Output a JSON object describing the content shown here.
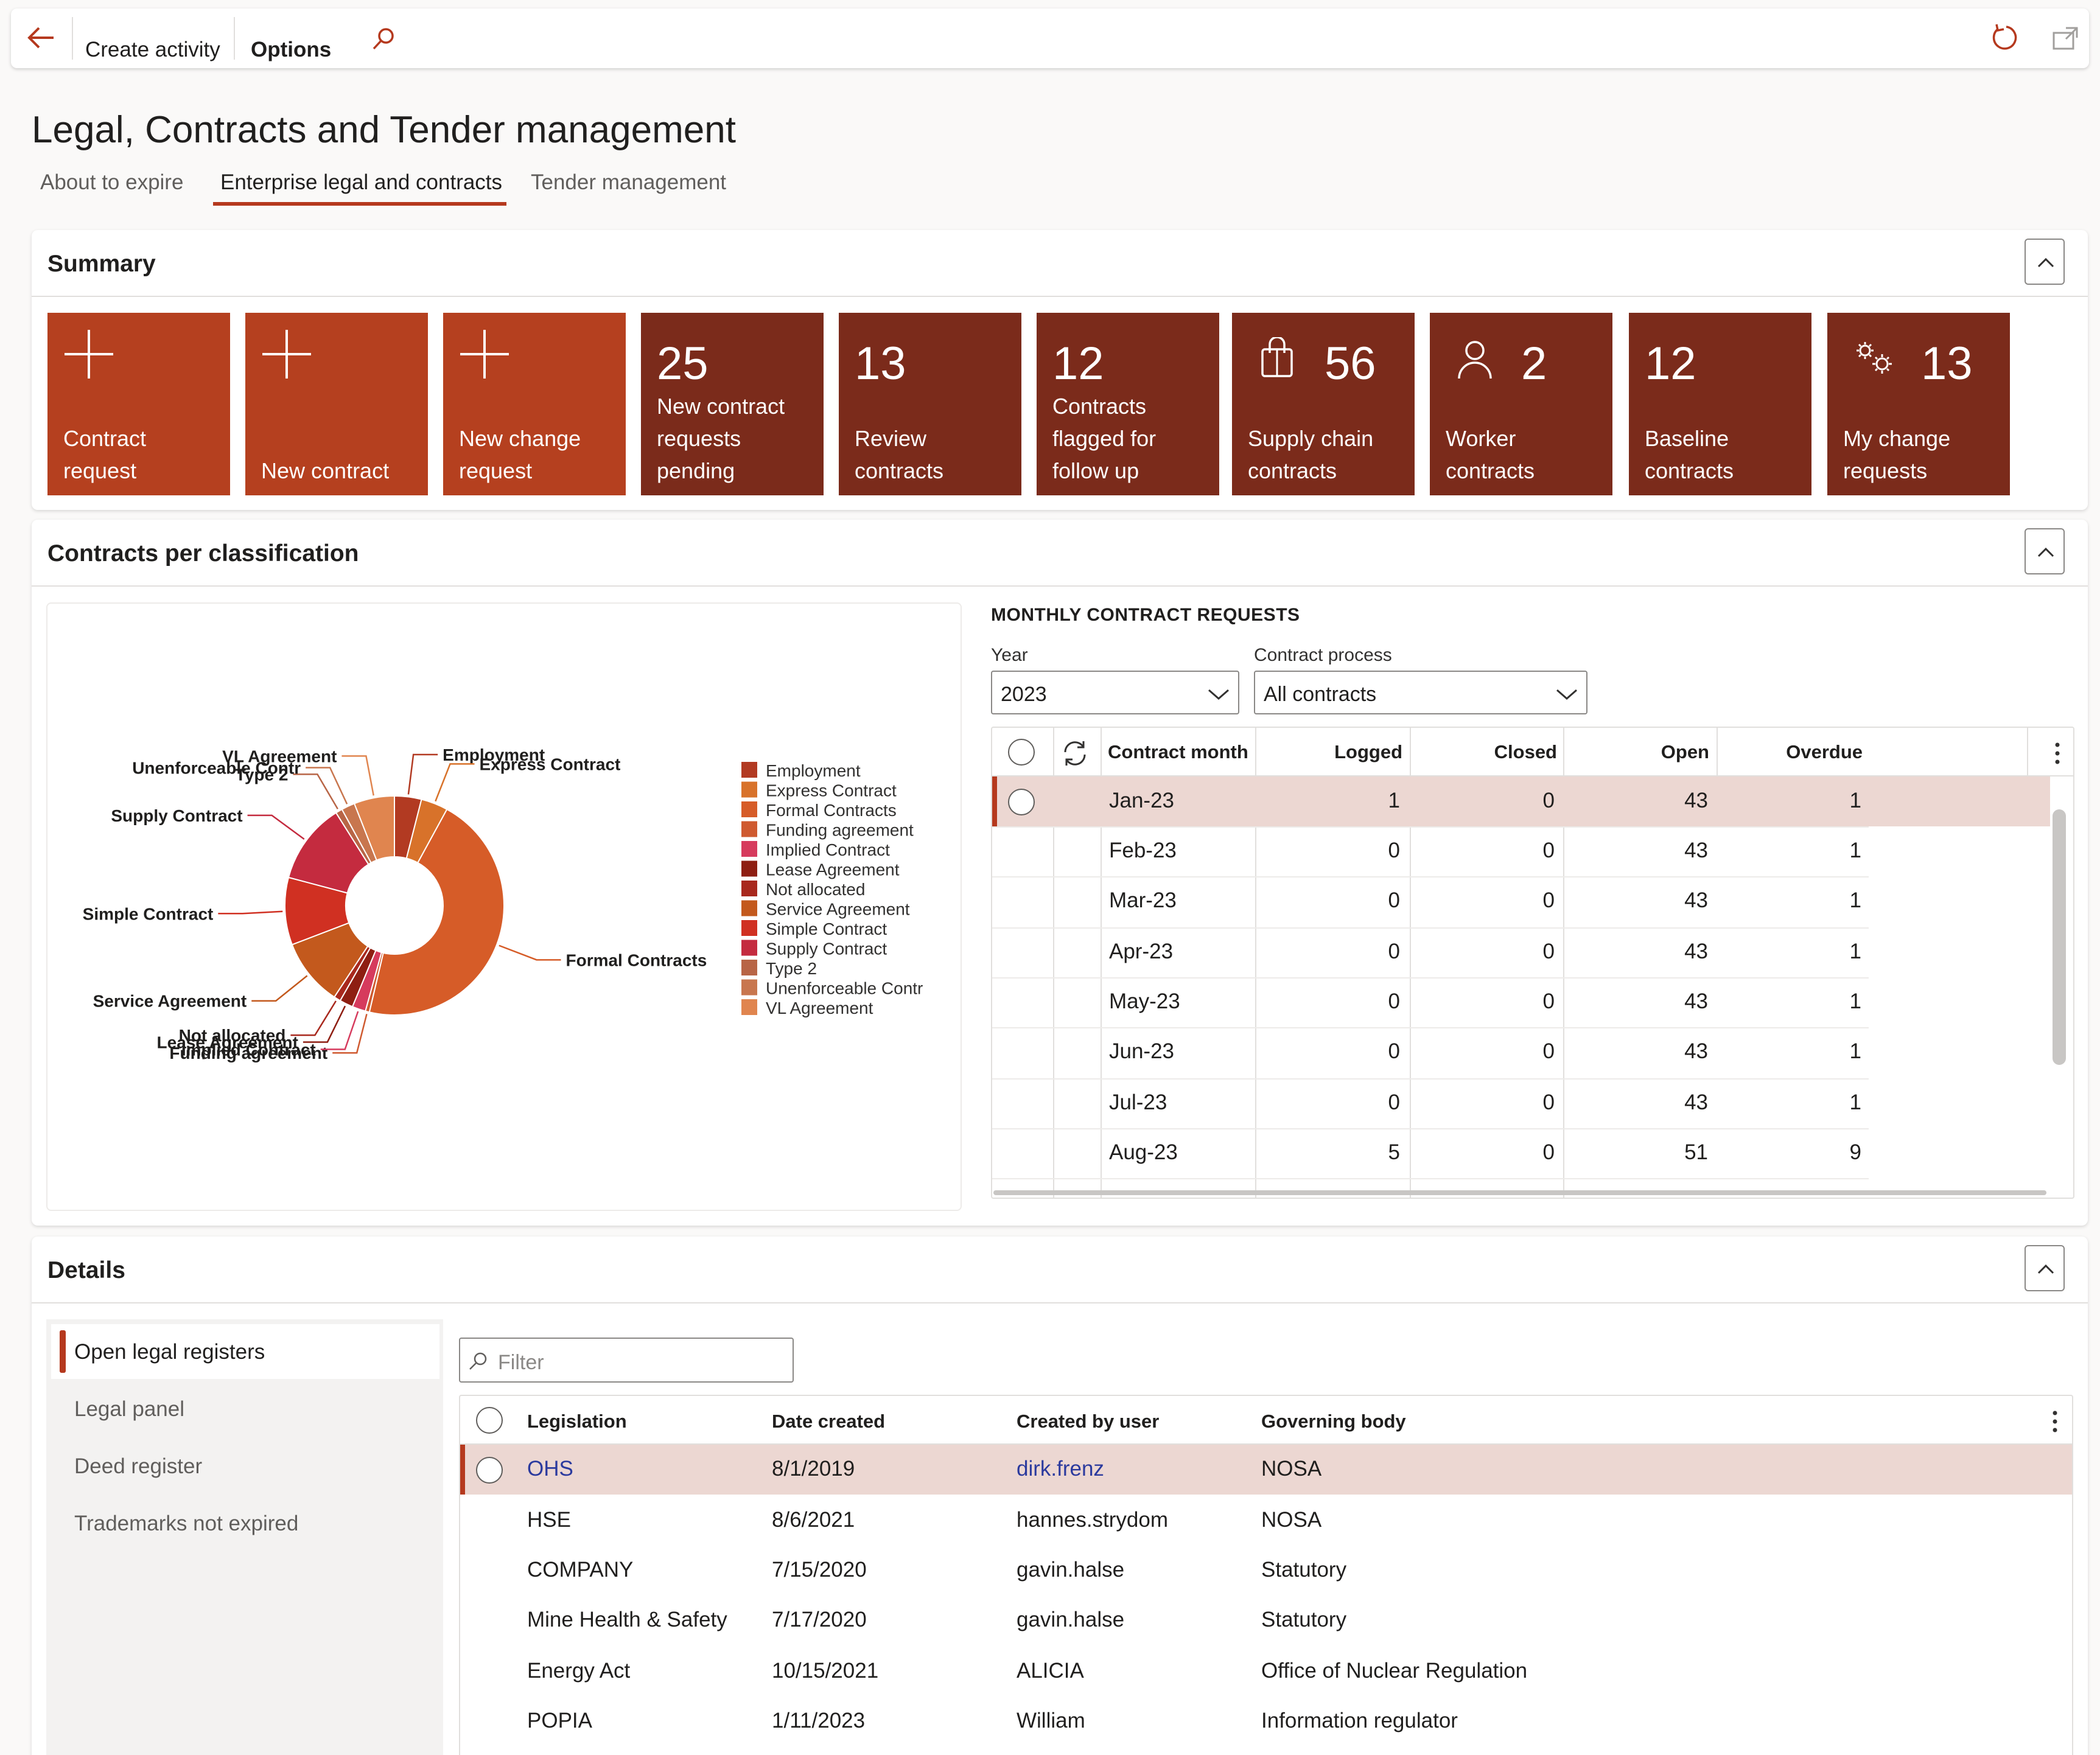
{
  "toolbar": {
    "create_activity": "Create activity",
    "options": "Options"
  },
  "page": {
    "title": "Legal, Contracts and Tender management",
    "tabs": [
      "About to expire",
      "Enterprise legal and contracts",
      "Tender management"
    ],
    "active_tab": "Enterprise legal and contracts"
  },
  "summary": {
    "title": "Summary",
    "tiles": [
      {
        "count": "",
        "icon": "plus-icon",
        "label": "Contract request"
      },
      {
        "count": "",
        "icon": "plus-icon",
        "label": "New contract"
      },
      {
        "count": "",
        "icon": "plus-icon",
        "label": "New change request"
      },
      {
        "count": "25",
        "icon": "",
        "label": "New contract requests pending"
      },
      {
        "count": "13",
        "icon": "",
        "label": "Review contracts"
      },
      {
        "count": "12",
        "icon": "",
        "label": "Contracts flagged for follow up"
      },
      {
        "count": "56",
        "icon": "shopping-bag-icon",
        "label": "Supply chain contracts"
      },
      {
        "count": "2",
        "icon": "person-icon",
        "label": "Worker contracts"
      },
      {
        "count": "12",
        "icon": "",
        "label": "Baseline contracts"
      },
      {
        "count": "13",
        "icon": "gears-icon",
        "label": "My change requests"
      }
    ]
  },
  "classification": {
    "title": "Contracts per classification",
    "monthly_title": "MONTHLY CONTRACT REQUESTS",
    "year_label": "Year",
    "year_value": "2023",
    "process_label": "Contract process",
    "process_value": "All contracts",
    "columns": [
      "Contract month",
      "Logged",
      "Closed",
      "Open",
      "Overdue"
    ],
    "rows": [
      {
        "month": "Jan-23",
        "logged": "1",
        "closed": "0",
        "open": "43",
        "overdue": "1"
      },
      {
        "month": "Feb-23",
        "logged": "0",
        "closed": "0",
        "open": "43",
        "overdue": "1"
      },
      {
        "month": "Mar-23",
        "logged": "0",
        "closed": "0",
        "open": "43",
        "overdue": "1"
      },
      {
        "month": "Apr-23",
        "logged": "0",
        "closed": "0",
        "open": "43",
        "overdue": "1"
      },
      {
        "month": "May-23",
        "logged": "0",
        "closed": "0",
        "open": "43",
        "overdue": "1"
      },
      {
        "month": "Jun-23",
        "logged": "0",
        "closed": "0",
        "open": "43",
        "overdue": "1"
      },
      {
        "month": "Jul-23",
        "logged": "0",
        "closed": "0",
        "open": "43",
        "overdue": "1"
      },
      {
        "month": "Aug-23",
        "logged": "5",
        "closed": "0",
        "open": "51",
        "overdue": "9"
      }
    ]
  },
  "chart_data": {
    "type": "pie",
    "categories": [
      "Employment",
      "Express Contract",
      "Formal Contracts",
      "Funding agreement",
      "Implied Contract",
      "Lease Agreement",
      "Not allocated",
      "Service Agreement",
      "Simple Contract",
      "Supply Contract",
      "Type 2",
      "Unenforceable Contr",
      "VL Agreement"
    ],
    "values": [
      2,
      2,
      23,
      0.3,
      1,
      1,
      0.5,
      5,
      5,
      6,
      0.5,
      1,
      3
    ],
    "colors": [
      "#b23a22",
      "#d8722a",
      "#d65c28",
      "#cf5a30",
      "#d63b5d",
      "#8e1e12",
      "#a8281d",
      "#c3591d",
      "#d03022",
      "#c42b3f",
      "#b86546",
      "#c8764e",
      "#e0854f"
    ],
    "donut": true,
    "legend_position": "right"
  },
  "details": {
    "title": "Details",
    "nav": [
      "Open legal registers",
      "Legal panel",
      "Deed register",
      "Trademarks not expired"
    ],
    "active_nav": "Open legal registers",
    "filter_placeholder": "Filter",
    "columns": [
      "Legislation",
      "Date created",
      "Created by user",
      "Governing body"
    ],
    "rows": [
      {
        "legislation": "OHS",
        "date": "8/1/2019",
        "user": "dirk.frenz",
        "body": "NOSA"
      },
      {
        "legislation": "HSE",
        "date": "8/6/2021",
        "user": "hannes.strydom",
        "body": "NOSA"
      },
      {
        "legislation": "COMPANY",
        "date": "7/15/2020",
        "user": "gavin.halse",
        "body": "Statutory"
      },
      {
        "legislation": "Mine Health & Safety",
        "date": "7/17/2020",
        "user": "gavin.halse",
        "body": "Statutory"
      },
      {
        "legislation": "Energy Act",
        "date": "10/15/2021",
        "user": "ALICIA",
        "body": "Office of Nuclear Regulation"
      },
      {
        "legislation": "POPIA",
        "date": "1/11/2023",
        "user": "William",
        "body": "Information regulator"
      }
    ]
  },
  "colors": {
    "accent": "#b5391e",
    "tile_action": "#b5401f",
    "tile_count": "#7b2b1b",
    "selected_row": "#ecd7d2"
  }
}
